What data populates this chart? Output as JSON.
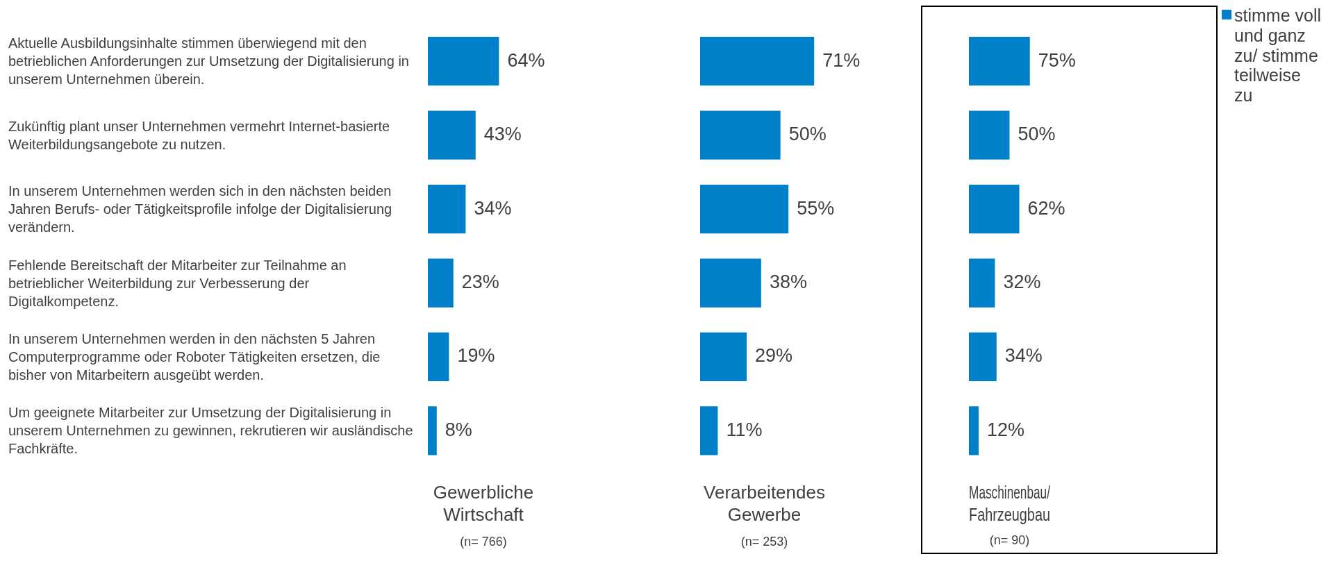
{
  "chart_data": [
    {
      "type": "bar",
      "orientation": "horizontal",
      "xlabel": "Gewerbliche Wirtschaft",
      "annotations": [
        "(n= 766)"
      ],
      "tick_labels": "y",
      "categories": [
        "Aktuelle Ausbildungsinhalte stimmen überwiegend mit den betrieblichen Anforderungen zur Umsetzung der Digitalisierung in unserem Unternehmen überein.",
        "Zukünftig plant unser Unternehmen vermehrt Internet-basierte Weiterbildungsangebote zu nutzen.",
        "In unserem Unternehmen werden sich in den nächsten beiden Jahren Berufs- oder Tätigkeitsprofile infolge der Digitalisierung verändern.",
        "Fehlende Bereitschaft der Mitarbeiter zur Teilnahme an betrieblicher Weiterbildung zur Verbesserung der Digitalkompetenz.",
        "In unserem Unternehmen werden in den nächsten 5 Jahren Computerprogramme oder Roboter Tätigkeiten ersetzen, die bisher von Mitarbeitern ausgeübt werden.",
        "Um geeignete Mitarbeiter zur Umsetzung der Digitalisierung in unserem Unternehmen zu gewinnen, rekrutieren wir ausländische Fachkräfte."
      ],
      "series": [
        {
          "color": "#0080c8",
          "values": [
            64,
            43,
            34,
            23,
            19,
            8
          ],
          "value_labels": [
            "64%",
            "43%",
            "34%",
            "23%",
            "19%",
            "8%"
          ]
        }
      ]
    },
    {
      "type": "bar",
      "orientation": "horizontal",
      "xlabel": "Verarbeitendes Gewerbe",
      "annotations": [
        "(n= 253)"
      ],
      "tick_labels": false,
      "categories": [
        null,
        null,
        null,
        null,
        null,
        null
      ],
      "series": [
        {
          "color": "#0080c8",
          "values": [
            71,
            50,
            55,
            38,
            29,
            11
          ],
          "value_labels": [
            "71%",
            "50%",
            "55%",
            "38%",
            "29%",
            "11%"
          ]
        }
      ]
    },
    {
      "type": "bar",
      "orientation": "horizontal",
      "xlabel": "Maschinenbau/ Fahrzeugbau",
      "annotations": [
        "(n= 90)"
      ],
      "tick_labels": false,
      "legend": "right",
      "categories": [
        null,
        null,
        null,
        null,
        null,
        null
      ],
      "series": [
        {
          "name": "stimme voll und ganz zu/ stimme teilweise zu",
          "color": "#0080c8",
          "values": [
            75,
            50,
            62,
            32,
            34,
            12
          ],
          "value_labels": [
            "75%",
            "50%",
            "62%",
            "32%",
            "34%",
            "12%"
          ]
        }
      ]
    }
  ]
}
